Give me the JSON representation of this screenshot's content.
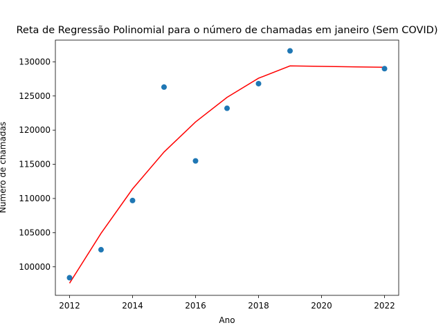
{
  "chart_data": {
    "type": "scatter",
    "title": "Reta de Regressão Polinomial para o número de chamadas em janeiro (Sem COVID)",
    "xlabel": "Ano",
    "ylabel": "Número de chamadas",
    "xlim": [
      2011.55,
      2022.45
    ],
    "ylim": [
      95825,
      133175
    ],
    "xticks": [
      2012,
      2014,
      2016,
      2018,
      2020,
      2022
    ],
    "yticks": [
      100000,
      105000,
      110000,
      115000,
      120000,
      125000,
      130000
    ],
    "grid": false,
    "colors": {
      "points": "#1f77b4",
      "fit_line": "#ff0000"
    },
    "points": {
      "x": [
        2012,
        2013,
        2014,
        2015,
        2016,
        2017,
        2018,
        2019,
        2022
      ],
      "y": [
        98400,
        102500,
        109700,
        126300,
        115500,
        123200,
        126800,
        131600,
        129000
      ]
    },
    "fit_line": {
      "x": [
        2012,
        2013,
        2014,
        2015,
        2016,
        2017,
        2018,
        2019,
        2022
      ],
      "y": [
        97600,
        104900,
        111400,
        116800,
        121200,
        124800,
        127600,
        129400,
        129200
      ]
    }
  }
}
